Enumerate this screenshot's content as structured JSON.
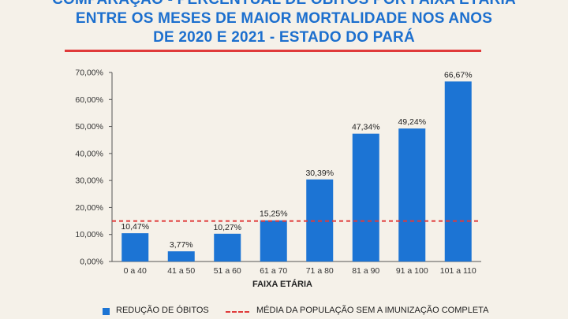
{
  "title_lines": [
    "COMPARAÇÃO - PERCENTUAL DE ÓBITOS POR FAIXA ETÁRIA",
    "ENTRE OS MESES DE MAIOR MORTALIDADE NOS ANOS",
    "DE 2020 E 2021 - ESTADO DO PARÁ"
  ],
  "legend": {
    "bars": "REDUÇÃO DE ÓBITOS",
    "line": "MÉDIA DA POPULAÇÃO SEM A IMUNIZAÇÃO COMPLETA"
  },
  "colors": {
    "bar": "#1c74d4",
    "reference_line": "#e03a3a",
    "title": "#1c6fce",
    "background": "#f5f1e9"
  },
  "chart_data": {
    "type": "bar",
    "title": "COMPARAÇÃO - PERCENTUAL DE ÓBITOS POR FAIXA ETÁRIA ENTRE OS MESES DE MAIOR MORTALIDADE NOS ANOS DE 2020 E 2021 - ESTADO DO PARÁ",
    "xlabel": "FAIXA ETÁRIA",
    "ylabel": "",
    "categories": [
      "0 a 40",
      "41 a 50",
      "51 a 60",
      "61 a 70",
      "71 a 80",
      "81 a 90",
      "91 a 100",
      "101 a 110"
    ],
    "values": [
      10.47,
      3.77,
      10.27,
      15.25,
      30.39,
      47.34,
      49.24,
      66.67
    ],
    "data_labels": [
      "10,47%",
      "3,77%",
      "10,27%",
      "15,25%",
      "30,39%",
      "47,34%",
      "49,24%",
      "66,67%"
    ],
    "yticks": [
      0,
      10,
      20,
      30,
      40,
      50,
      60,
      70
    ],
    "ytick_labels": [
      "0,00%",
      "10,00%",
      "20,00%",
      "30,00%",
      "40,00%",
      "50,00%",
      "60,00%",
      "70,00%"
    ],
    "ylim": [
      0,
      70
    ],
    "reference_line": {
      "name": "MÉDIA DA POPULAÇÃO SEM A IMUNIZAÇÃO COMPLETA",
      "value": 15
    },
    "legend_position": "bottom",
    "grid": false
  }
}
